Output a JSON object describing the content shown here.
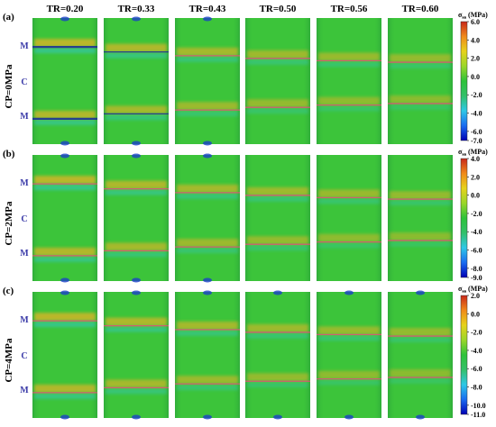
{
  "columns": [
    "TR=0.20",
    "TR=0.33",
    "TR=0.43",
    "TR=0.50",
    "TR=0.56",
    "TR=0.60"
  ],
  "tr_values": [
    0.2,
    0.33,
    0.43,
    0.5,
    0.56,
    0.6
  ],
  "colorbar_title": "σ",
  "colorbar_sub": "ss",
  "colorbar_unit": " (MPa)",
  "colors": {
    "gradient": [
      "#0000b4",
      "#1a6cf0",
      "#2ec8e6",
      "#33c06a",
      "#2ec23a",
      "#9ad62a",
      "#e6d21a",
      "#f08a1a",
      "#c8281a"
    ],
    "field": "#3cc43a",
    "top_label": "#000000",
    "row_label": "#000000",
    "zone_label": "#3a3aa8",
    "interface_dark": "#1a2a9a",
    "interface_pink": "#e0507a",
    "hot_band": "#ffb020",
    "cool_band": "#30c8d8"
  },
  "rows": [
    {
      "panel": "(a)",
      "label": "CP=0MPa",
      "zones": [
        "M",
        "C",
        "M"
      ],
      "cmin": -7.0,
      "cmax": 6.0,
      "ticks": [
        "6.0",
        "4.0",
        "2.0",
        "0.0",
        "-2.0",
        "-4.0",
        "-6.0",
        "-7.0"
      ]
    },
    {
      "panel": "(b)",
      "label": "CP=2MPa",
      "zones": [
        "M",
        "C",
        "M"
      ],
      "cmin": -9.0,
      "cmax": 4.0,
      "ticks": [
        "4.0",
        "2.0",
        "0.0",
        "-2.0",
        "-4.0",
        "-6.0",
        "-8.0",
        "-9.0"
      ]
    },
    {
      "panel": "(c)",
      "label": "CP=4MPa",
      "zones": [
        "M",
        "C",
        "M"
      ],
      "cmin": -11.0,
      "cmax": 2.0,
      "ticks": [
        "2.0",
        "0.0",
        "-2.0",
        "-4.0",
        "-6.0",
        "-8.0",
        "-10.0",
        "-11.0"
      ]
    }
  ]
}
